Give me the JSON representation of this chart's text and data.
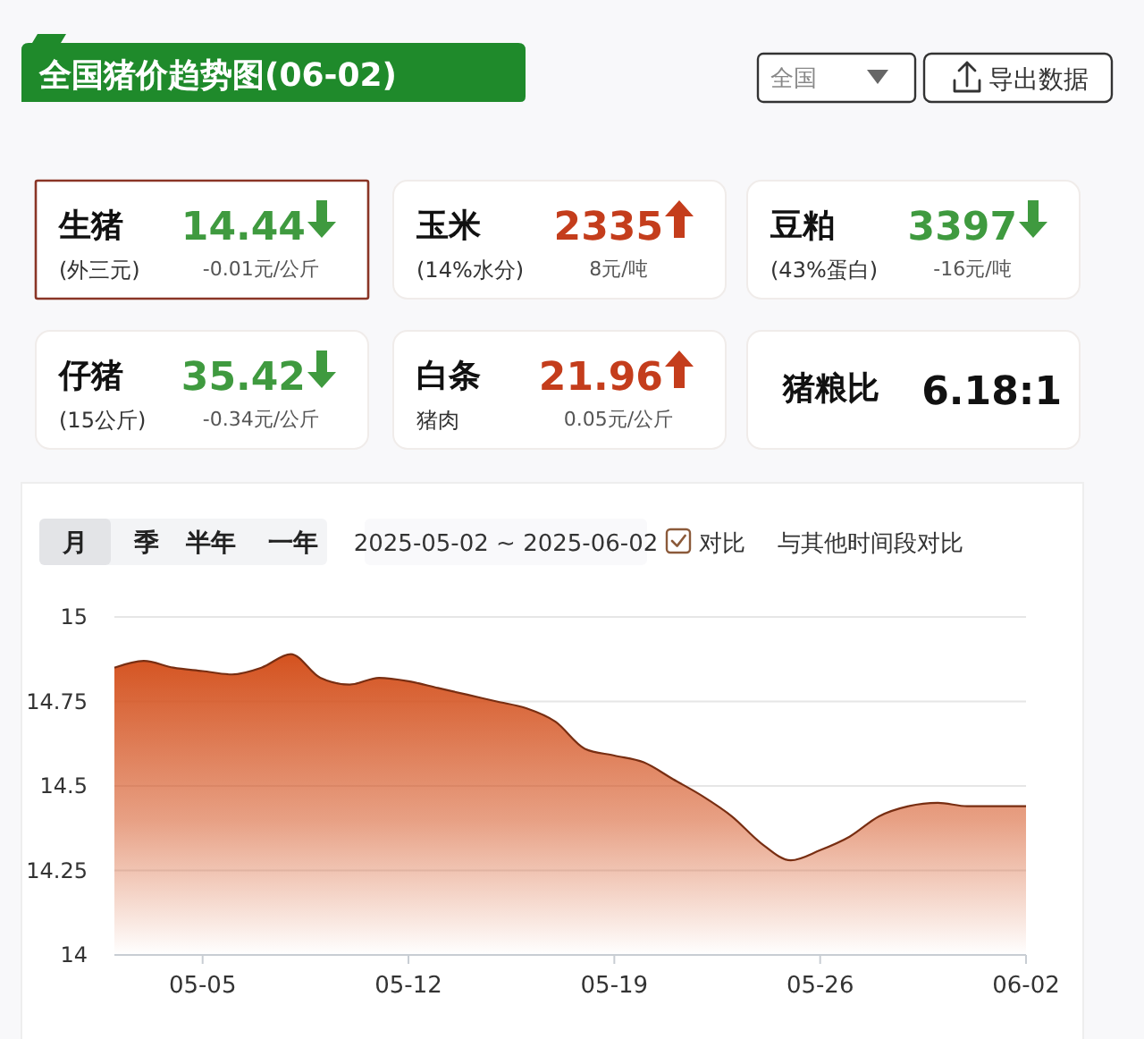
{
  "chart_data": [
    {
      "type": "other",
      "title": "全国猪价趋势图(06-02)",
      "annotations": [
        "全国",
        "导出数据"
      ]
    },
    {
      "type": "other",
      "title": "生猪",
      "subtitle": "(外三元)",
      "annotations": [
        "14.44",
        "-0.01元/公斤"
      ],
      "color": "#3f9a3f"
    },
    {
      "type": "other",
      "title": "玉米",
      "subtitle": "(14%水分)",
      "annotations": [
        "2335",
        "8元/吨"
      ],
      "color": "#c43d1c"
    },
    {
      "type": "other",
      "title": "豆粕",
      "subtitle": "(43%蛋白)",
      "annotations": [
        "3397",
        "-16元/吨"
      ],
      "color": "#3f9a3f"
    },
    {
      "type": "other",
      "title": "仔猪",
      "subtitle": "(15公斤)",
      "annotations": [
        "35.42",
        "-0.34元/公斤"
      ],
      "color": "#3f9a3f"
    },
    {
      "type": "other",
      "title": "白条",
      "subtitle": "猪肉",
      "annotations": [
        "21.96",
        "0.05元/公斤"
      ],
      "color": "#c43d1c"
    },
    {
      "type": "other",
      "title": "猪粮比",
      "annotations": [
        "6.18:1"
      ]
    },
    {
      "type": "area",
      "annotations": [
        "月",
        "季",
        "半年",
        "一年",
        "2025-05-02 ~ 2025-06-02",
        "对比",
        "与其他时间段对比"
      ],
      "x": [
        "2025-05-02",
        "2025-05-03",
        "2025-05-04",
        "2025-05-05",
        "2025-05-06",
        "2025-05-07",
        "2025-05-08",
        "2025-05-09",
        "2025-05-10",
        "2025-05-11",
        "2025-05-12",
        "2025-05-13",
        "2025-05-14",
        "2025-05-15",
        "2025-05-16",
        "2025-05-17",
        "2025-05-18",
        "2025-05-19",
        "2025-05-20",
        "2025-05-21",
        "2025-05-22",
        "2025-05-23",
        "2025-05-24",
        "2025-05-25",
        "2025-05-26",
        "2025-05-27",
        "2025-05-28",
        "2025-05-29",
        "2025-05-30",
        "2025-05-31",
        "2025-06-01",
        "2025-06-02"
      ],
      "series": [
        {
          "color": "#d4521f",
          "values": [
            14.85,
            14.87,
            14.85,
            14.84,
            14.83,
            14.85,
            14.89,
            14.82,
            14.8,
            14.82,
            14.81,
            14.79,
            14.77,
            14.75,
            14.73,
            14.69,
            14.61,
            14.59,
            14.57,
            14.52,
            14.47,
            14.41,
            14.33,
            14.28,
            14.31,
            14.35,
            14.41,
            14.44,
            14.45,
            14.44,
            14.44,
            14.44
          ]
        }
      ],
      "xlim": [
        "2025-05-02",
        "2025-06-02"
      ],
      "xticks": [
        {
          "value": "2025-05-05",
          "label": "05-05"
        },
        {
          "value": "2025-05-12",
          "label": "05-12"
        },
        {
          "value": "2025-05-19",
          "label": "05-19"
        },
        {
          "value": "2025-05-26",
          "label": "05-26"
        },
        {
          "value": "2025-06-02",
          "label": "06-02"
        }
      ],
      "ylim": [
        14,
        15
      ],
      "yticks": [
        14,
        14.25,
        14.5,
        14.75,
        15
      ],
      "grid": "y"
    }
  ]
}
